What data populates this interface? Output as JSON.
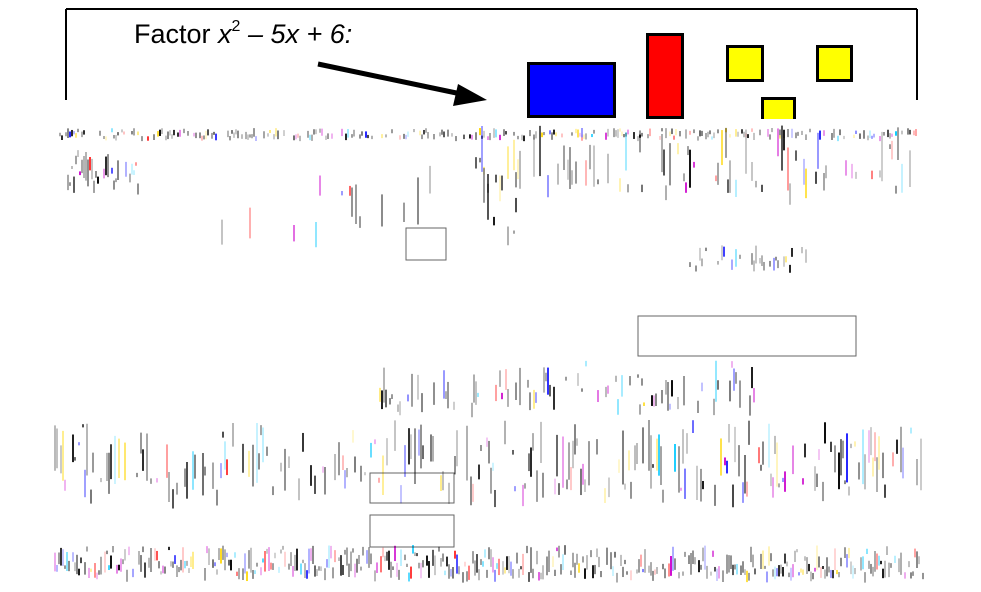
{
  "prompt": {
    "lead": "Factor ",
    "base": "x",
    "exponent": "2",
    "rest": " – 5x + 6:"
  },
  "tiles": {
    "x_squared_color": "#0000ff",
    "x_color": "#ff0000",
    "unit_color": "#ffff00"
  },
  "colors": {
    "frame": "#000000",
    "arrow": "#000000",
    "noise_palette": [
      "#000000",
      "#1a1aff",
      "#ff2a2a",
      "#ffd700",
      "#00c8ff",
      "#cc00cc"
    ]
  }
}
